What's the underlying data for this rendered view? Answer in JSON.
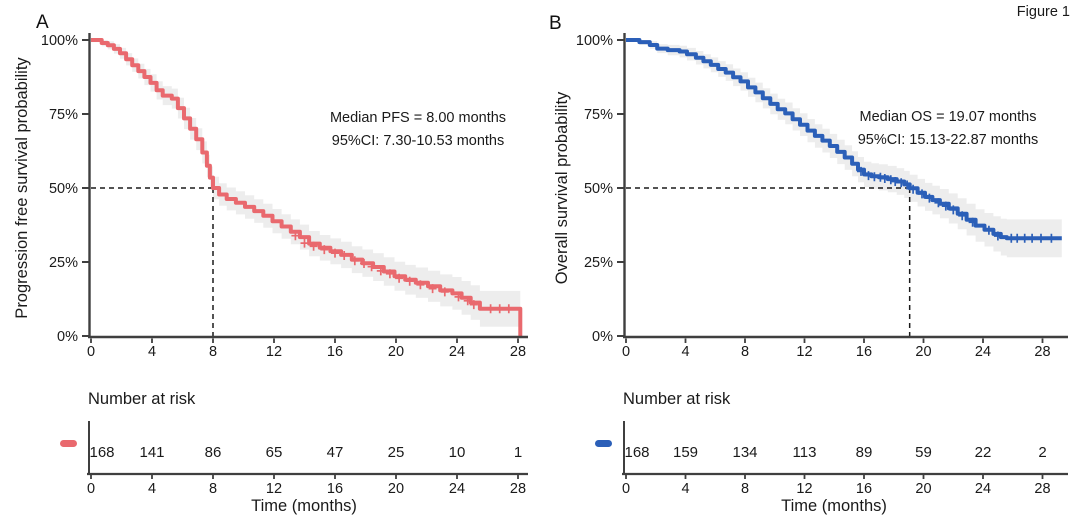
{
  "figure_label": "Figure 1",
  "colors": {
    "axis": "#3f3f3f",
    "text": "#1a1a1a",
    "dashed_line": "#1a1a1a",
    "ci_band": "rgba(0,0,0,0.07)"
  },
  "chart_data": [
    {
      "type": "line",
      "subtype": "kaplan_meier_step",
      "panel_label": "A",
      "ylabel": "Progression free survival probability",
      "xlabel": "Time (months)",
      "annotation": [
        "Median PFS = 8.00 months",
        "95%CI: 7.30-10.53 months"
      ],
      "median_time_months": 8.0,
      "median_ci_months": [
        7.3,
        10.53
      ],
      "median_survival_pct": 50,
      "color": "#E9696E",
      "risk_number_color": "#F08181",
      "xlim": [
        0,
        29
      ],
      "ylim": [
        0,
        100
      ],
      "grid": false,
      "x_tick_values": [
        0,
        4,
        8,
        12,
        16,
        20,
        24,
        28
      ],
      "x_tick_labels": [
        "0",
        "4",
        "8",
        "12",
        "16",
        "20",
        "24",
        "28"
      ],
      "y_tick_values": [
        100,
        75,
        50,
        25,
        0
      ],
      "y_tick_labels": [
        "100%",
        "75%",
        "50%",
        "25%",
        "0%"
      ],
      "steps": [
        [
          0,
          100
        ],
        [
          0.7,
          99
        ],
        [
          1.1,
          98.2
        ],
        [
          1.5,
          97
        ],
        [
          1.9,
          95.5
        ],
        [
          2.3,
          93.5
        ],
        [
          2.7,
          91.5
        ],
        [
          3.1,
          89.5
        ],
        [
          3.5,
          87.5
        ],
        [
          3.9,
          85.5
        ],
        [
          4.3,
          83
        ],
        [
          4.7,
          81.2
        ],
        [
          5.3,
          80.2
        ],
        [
          5.7,
          77
        ],
        [
          6.1,
          73.5
        ],
        [
          6.5,
          70
        ],
        [
          6.9,
          66.5
        ],
        [
          7.3,
          62
        ],
        [
          7.6,
          57.5
        ],
        [
          7.8,
          53.5
        ],
        [
          8,
          50
        ],
        [
          8.4,
          47.8
        ],
        [
          8.9,
          46.3
        ],
        [
          9.5,
          45
        ],
        [
          10.1,
          43.6
        ],
        [
          10.7,
          42.2
        ],
        [
          11.3,
          40.6
        ],
        [
          11.9,
          38.8
        ],
        [
          12.5,
          37
        ],
        [
          13.1,
          35.2
        ],
        [
          13.7,
          33.4
        ],
        [
          14.3,
          31.2
        ],
        [
          15,
          29.8
        ],
        [
          15.7,
          28.6
        ],
        [
          16.4,
          27.4
        ],
        [
          17.1,
          25.8
        ],
        [
          17.8,
          24.6
        ],
        [
          18.5,
          23.3
        ],
        [
          19.2,
          21.8
        ],
        [
          19.9,
          20.2
        ],
        [
          20.6,
          19
        ],
        [
          21.3,
          18
        ],
        [
          22.1,
          16.8
        ],
        [
          22.9,
          15.4
        ],
        [
          23.7,
          14.4
        ],
        [
          24.3,
          12.9
        ],
        [
          24.9,
          11.3
        ],
        [
          25.5,
          9.2
        ],
        [
          28.15,
          9.2
        ],
        [
          28.15,
          0
        ]
      ],
      "censor_marks": [
        [
          13.4,
          33.9
        ],
        [
          14,
          31.4
        ],
        [
          14.6,
          30.3
        ],
        [
          15.3,
          29.2
        ],
        [
          16,
          28
        ],
        [
          16.6,
          27.2
        ],
        [
          17.3,
          25.4
        ],
        [
          17.9,
          24.5
        ],
        [
          18.4,
          23.4
        ],
        [
          19,
          22
        ],
        [
          19.6,
          21
        ],
        [
          20.2,
          19.5
        ],
        [
          20.9,
          18.5
        ],
        [
          21.6,
          17.3
        ],
        [
          22.4,
          16
        ],
        [
          23.2,
          14.9
        ],
        [
          24.1,
          13.2
        ],
        [
          24.7,
          11.9
        ],
        [
          25.1,
          10.6
        ],
        [
          26.2,
          9.2
        ],
        [
          26.8,
          9.2
        ],
        [
          27.4,
          9.2
        ]
      ],
      "ci_halfwidth": [
        [
          0,
          0.7
        ],
        [
          2,
          1.9
        ],
        [
          4,
          3
        ],
        [
          6,
          3.6
        ],
        [
          8,
          3.8
        ],
        [
          12,
          4.1
        ],
        [
          16,
          4.4
        ],
        [
          20,
          4.9
        ],
        [
          24,
          5.6
        ],
        [
          26,
          6.2
        ],
        [
          28.15,
          6.2
        ]
      ],
      "risk_table": {
        "title": "Number at risk",
        "times": [
          0,
          4,
          8,
          12,
          16,
          20,
          24,
          28
        ],
        "counts": [
          "168",
          "141",
          "86",
          "65",
          "47",
          "25",
          "10",
          "1"
        ]
      }
    },
    {
      "type": "line",
      "subtype": "kaplan_meier_step",
      "panel_label": "B",
      "ylabel": "Overall survival probability",
      "xlabel": "Time (months)",
      "annotation": [
        "Median OS = 19.07 months",
        "95%CI: 15.13-22.87 months"
      ],
      "median_time_months": 19.07,
      "median_ci_months": [
        15.13,
        22.87
      ],
      "median_survival_pct": 50,
      "color": "#2B5FB8",
      "risk_number_color": "#3D72C9",
      "xlim": [
        0,
        29.5
      ],
      "ylim": [
        0,
        100
      ],
      "grid": false,
      "x_tick_values": [
        0,
        4,
        8,
        12,
        16,
        20,
        24,
        28
      ],
      "x_tick_labels": [
        "0",
        "4",
        "8",
        "12",
        "16",
        "20",
        "24",
        "28"
      ],
      "y_tick_values": [
        100,
        75,
        50,
        25,
        0
      ],
      "y_tick_labels": [
        "100%",
        "75%",
        "50%",
        "25%",
        "0%"
      ],
      "steps": [
        [
          0,
          100
        ],
        [
          0.9,
          99.3
        ],
        [
          1.6,
          98.3
        ],
        [
          2.1,
          97.1
        ],
        [
          2.8,
          96.6
        ],
        [
          3.6,
          96.1
        ],
        [
          4.1,
          95.2
        ],
        [
          4.7,
          94
        ],
        [
          5.2,
          92.8
        ],
        [
          5.7,
          91.6
        ],
        [
          6.2,
          90.2
        ],
        [
          6.7,
          89
        ],
        [
          7.2,
          87.4
        ],
        [
          7.7,
          86
        ],
        [
          8.2,
          84
        ],
        [
          8.7,
          82.3
        ],
        [
          9.2,
          80.3
        ],
        [
          9.7,
          78.4
        ],
        [
          10.2,
          76.6
        ],
        [
          10.7,
          75.2
        ],
        [
          11.2,
          73.2
        ],
        [
          11.7,
          71.4
        ],
        [
          12.2,
          69.4
        ],
        [
          12.7,
          67.6
        ],
        [
          13.2,
          66
        ],
        [
          13.7,
          64.2
        ],
        [
          14.2,
          62.2
        ],
        [
          14.7,
          60.3
        ],
        [
          15.2,
          58.2
        ],
        [
          15.6,
          56.2
        ],
        [
          16,
          54.6
        ],
        [
          16.5,
          54
        ],
        [
          17,
          53.6
        ],
        [
          17.6,
          53
        ],
        [
          18.2,
          52.2
        ],
        [
          18.7,
          51.2
        ],
        [
          19.07,
          49.9
        ],
        [
          19.6,
          48.4
        ],
        [
          20.1,
          47
        ],
        [
          20.6,
          45.9
        ],
        [
          21.1,
          44.7
        ],
        [
          21.7,
          43.1
        ],
        [
          22.3,
          41.3
        ],
        [
          22.9,
          39.3
        ],
        [
          23.5,
          37.3
        ],
        [
          24.1,
          35.9
        ],
        [
          24.7,
          34.5
        ],
        [
          25.2,
          33.4
        ],
        [
          25.6,
          33
        ],
        [
          29.3,
          33
        ]
      ],
      "censor_marks": [
        [
          15.8,
          55.6
        ],
        [
          16.3,
          54.2
        ],
        [
          16.7,
          53.8
        ],
        [
          17.1,
          53.6
        ],
        [
          17.4,
          53.2
        ],
        [
          17.8,
          52.8
        ],
        [
          18.1,
          52.2
        ],
        [
          18.5,
          51.8
        ],
        [
          18.9,
          51
        ],
        [
          19.3,
          49.6
        ],
        [
          19.9,
          48
        ],
        [
          20.4,
          46.6
        ],
        [
          21,
          45
        ],
        [
          21.5,
          43.9
        ],
        [
          22,
          42.6
        ],
        [
          22.6,
          40.6
        ],
        [
          23.3,
          38.4
        ],
        [
          24.4,
          35.7
        ],
        [
          25,
          33.8
        ],
        [
          25.9,
          33
        ],
        [
          26.3,
          33
        ],
        [
          26.8,
          33
        ],
        [
          27.3,
          33
        ],
        [
          27.9,
          33
        ],
        [
          28.6,
          33
        ]
      ],
      "ci_halfwidth": [
        [
          0,
          0.6
        ],
        [
          2,
          1.5
        ],
        [
          4,
          2.1
        ],
        [
          6,
          2.6
        ],
        [
          8,
          3.2
        ],
        [
          12,
          3.9
        ],
        [
          16,
          4.3
        ],
        [
          20,
          4.7
        ],
        [
          24,
          5.6
        ],
        [
          26,
          6.6
        ],
        [
          29.3,
          7
        ]
      ],
      "risk_table": {
        "title": "Number at risk",
        "times": [
          0,
          4,
          8,
          12,
          16,
          20,
          24,
          28
        ],
        "counts": [
          "168",
          "159",
          "134",
          "113",
          "89",
          "59",
          "22",
          "2"
        ]
      }
    }
  ]
}
